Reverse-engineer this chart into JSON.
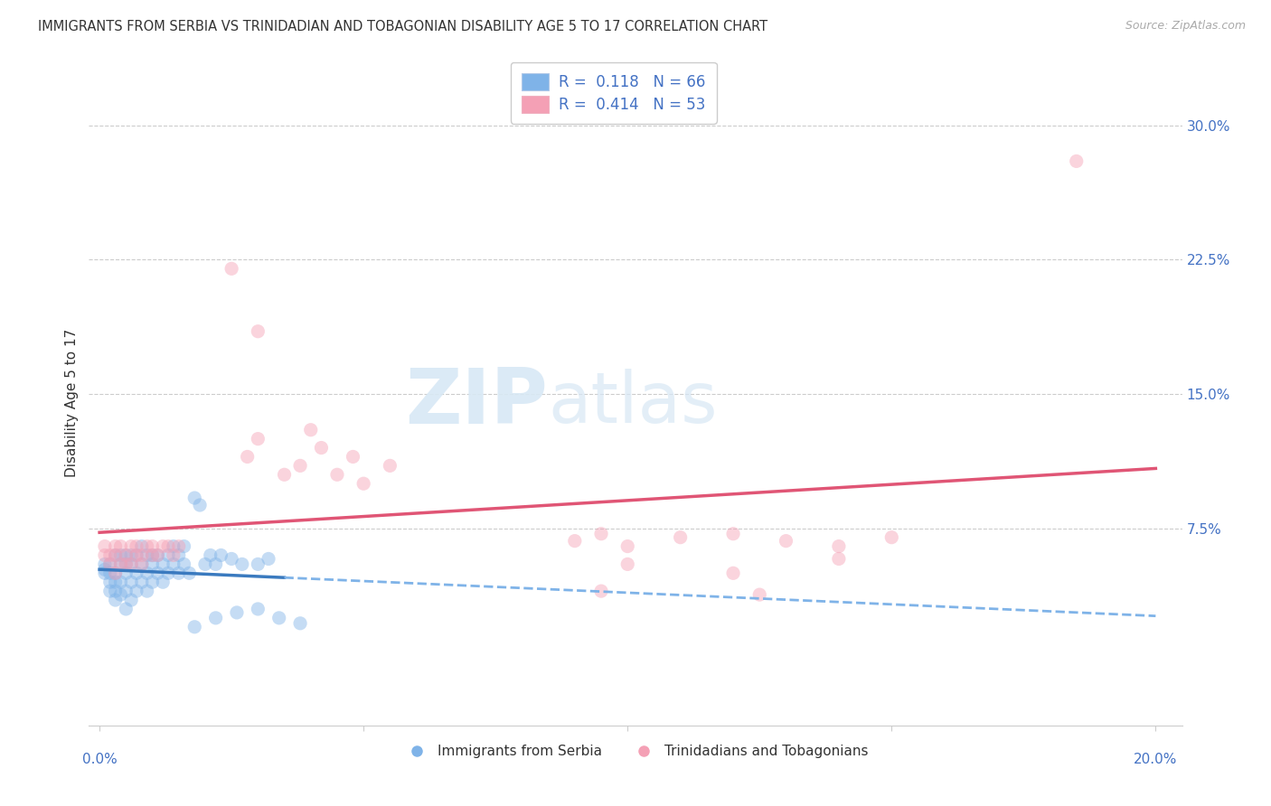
{
  "title": "IMMIGRANTS FROM SERBIA VS TRINIDADIAN AND TOBAGONIAN DISABILITY AGE 5 TO 17 CORRELATION CHART",
  "source": "Source: ZipAtlas.com",
  "ylabel": "Disability Age 5 to 17",
  "xlim": [
    -0.002,
    0.205
  ],
  "ylim": [
    -0.035,
    0.325
  ],
  "xtick_vals": [
    0.0,
    0.05,
    0.1,
    0.15,
    0.2
  ],
  "xtick_labels": [
    "0.0%",
    "",
    "",
    "",
    "20.0%"
  ],
  "ytick_vals": [
    0.075,
    0.15,
    0.225,
    0.3
  ],
  "ytick_labels": [
    "7.5%",
    "15.0%",
    "22.5%",
    "30.0%"
  ],
  "serbia_R": 0.118,
  "serbia_N": 66,
  "trinidad_R": 0.414,
  "trinidad_N": 53,
  "serbia_color": "#7fb3e8",
  "trinidad_color": "#f4a0b5",
  "serbia_line_color": "#3a7abf",
  "trinidad_line_color": "#e05575",
  "serbia_line_dashed_color": "#7fb3e8",
  "watermark_zip": "ZIP",
  "watermark_atlas": "atlas",
  "legend_label1": "Immigrants from Serbia",
  "legend_label2": "Trinidadians and Tobagonians",
  "grid_color": "#cccccc",
  "dot_size": 120,
  "dot_alpha": 0.45
}
